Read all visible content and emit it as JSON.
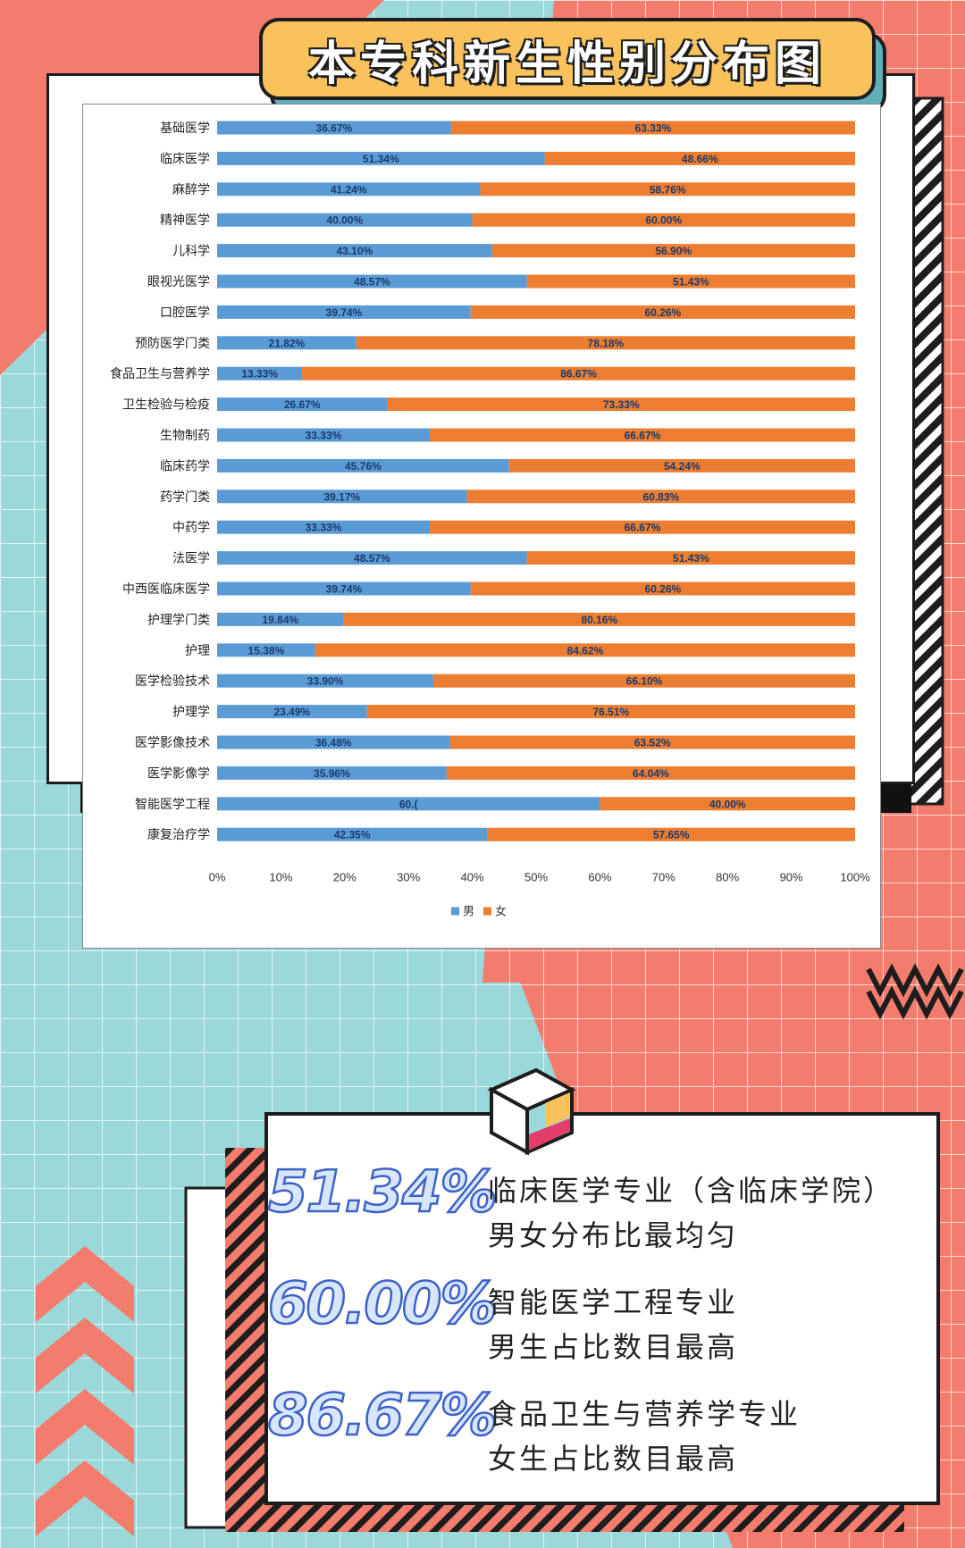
{
  "page": {
    "title": "本专科新生性别分布图"
  },
  "chart_data": {
    "type": "bar",
    "orientation": "horizontal",
    "stacked": true,
    "percent_stacked": true,
    "categories": [
      "基础医学",
      "临床医学",
      "麻醉学",
      "精神医学",
      "儿科学",
      "眼视光医学",
      "口腔医学",
      "预防医学门类",
      "食品卫生与营养学",
      "卫生检验与检疫",
      "生物制药",
      "临床药学",
      "药学门类",
      "中药学",
      "法医学",
      "中西医临床医学",
      "护理学门类",
      "护理",
      "医学检验技术",
      "护理学",
      "医学影像技术",
      "医学影像学",
      "智能医学工程",
      "康复治疗学"
    ],
    "series": [
      {
        "name": "男",
        "color": "#5b9bd5",
        "values": [
          36.67,
          51.34,
          41.24,
          40.0,
          43.1,
          48.57,
          39.74,
          21.82,
          13.33,
          26.67,
          33.33,
          45.76,
          39.17,
          33.33,
          48.57,
          39.74,
          19.84,
          15.38,
          33.9,
          23.49,
          36.48,
          35.96,
          60.0,
          42.35
        ],
        "labels": [
          "36.67%",
          "51.34%",
          "41.24%",
          "40.00%",
          "43.10%",
          "48.57%",
          "39.74%",
          "21.82%",
          "13.33%",
          "26.67%",
          "33.33%",
          "45.76%",
          "39.17%",
          "33.33%",
          "48.57%",
          "39.74%",
          "19.84%",
          "15.38%",
          "33.90%",
          "23.49%",
          "36.48%",
          "35.96%",
          "60.(",
          "42.35%"
        ]
      },
      {
        "name": "女",
        "color": "#ed7d31",
        "values": [
          63.33,
          48.66,
          58.76,
          60.0,
          56.9,
          51.43,
          60.26,
          78.18,
          86.67,
          73.33,
          66.67,
          54.24,
          60.83,
          66.67,
          51.43,
          60.26,
          80.16,
          84.62,
          66.1,
          76.51,
          63.52,
          64.04,
          40.0,
          57.65
        ],
        "labels": [
          "63.33%",
          "48.66%",
          "58.76%",
          "60.00%",
          "56.90%",
          "51.43%",
          "60.26%",
          "78.18%",
          "86.67%",
          "73.33%",
          "66.67%",
          "54.24%",
          "60.83%",
          "66.67%",
          "51.43%",
          "60.26%",
          "80.16%",
          "84.62%",
          "66.10%",
          "76.51%",
          "63.52%",
          "64.04%",
          "40.00%",
          "57.65%"
        ]
      }
    ],
    "x_ticks": [
      "0%",
      "10%",
      "20%",
      "30%",
      "40%",
      "50%",
      "60%",
      "70%",
      "80%",
      "90%",
      "100%"
    ],
    "xlim": [
      0,
      100
    ],
    "legend_position": "bottom",
    "grid": false
  },
  "highlights": [
    {
      "value": "51.34%",
      "line1": "临床医学专业（含临床学院）",
      "line2": "男女分布比最均匀"
    },
    {
      "value": "60.00%",
      "line1": "智能医学工程专业",
      "line2": "男生占比数目最高"
    },
    {
      "value": "86.67%",
      "line1": "食品卫生与营养学专业",
      "line2": "女生占比数目最高"
    }
  ],
  "colors": {
    "teal": "#9ad8da",
    "coral": "#f47c6c",
    "yellow": "#f9c25d",
    "male": "#5b9bd5",
    "female": "#ed7d31"
  }
}
